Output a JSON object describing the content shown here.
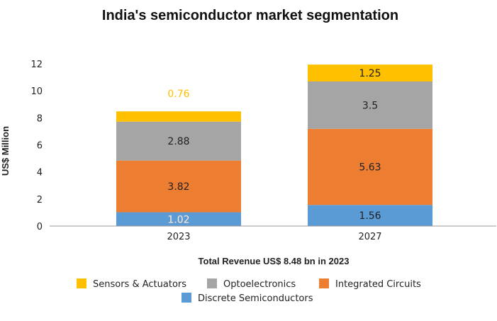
{
  "chart_data": {
    "type": "bar",
    "stacked": true,
    "title": "India's semiconductor market segmentation",
    "xlabel": "Total Revenue US$ 8.48 bn in 2023",
    "ylabel": "US$ Million",
    "ylim": [
      0,
      12
    ],
    "yticks": [
      "0",
      "2",
      "4",
      "6",
      "8",
      "10",
      "12"
    ],
    "categories": [
      "2023",
      "2027"
    ],
    "grid": false,
    "legend_position": "bottom",
    "series": [
      {
        "name": "Discrete Semiconductors",
        "color": "#5b9bd5",
        "values": [
          1.02,
          1.56
        ],
        "labels": [
          "1.02",
          "1.56"
        ],
        "label_colors": [
          "#ffffff",
          "#222222"
        ]
      },
      {
        "name": "Integrated Circuits",
        "color": "#ed7d31",
        "values": [
          3.82,
          5.63
        ],
        "labels": [
          "3.82",
          "5.63"
        ],
        "label_colors": [
          "#222222",
          "#222222"
        ]
      },
      {
        "name": "Optoelectronics",
        "color": "#a5a5a5",
        "values": [
          2.88,
          3.5
        ],
        "labels": [
          "2.88",
          "3.5"
        ],
        "label_colors": [
          "#222222",
          "#222222"
        ]
      },
      {
        "name": "Sensors & Actuators",
        "color": "#ffc000",
        "values": [
          0.76,
          1.25
        ],
        "labels": [
          "0.76",
          "1.25"
        ],
        "label_colors": [
          "#ffc000",
          "#222222"
        ]
      }
    ],
    "legend_order": [
      3,
      2,
      1,
      0
    ]
  }
}
